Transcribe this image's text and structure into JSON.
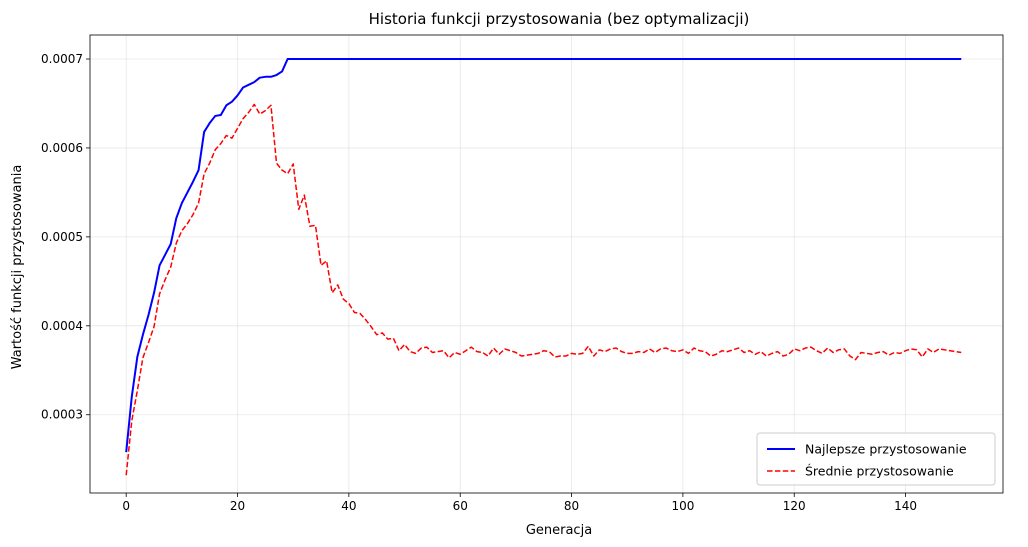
{
  "chart_data": {
    "type": "line",
    "title": "Historia funkcji przystosowania (bez optymalizacji)",
    "xlabel": "Generacja",
    "ylabel": "Wartość funkcji przystosowania",
    "xlim": [
      -6.5,
      157.5
    ],
    "ylim": [
      0.000212,
      0.000727
    ],
    "xticks": [
      0,
      20,
      40,
      60,
      80,
      100,
      120,
      140
    ],
    "yticks": [
      0.0003,
      0.0004,
      0.0005,
      0.0006,
      0.0007
    ],
    "ytick_labels": [
      "0.0003",
      "0.0004",
      "0.0005",
      "0.0006",
      "0.0007"
    ],
    "grid": true,
    "legend_position": "bottom-right",
    "series": [
      {
        "name": "Najlepsze przystosowanie",
        "color": "#0000ff",
        "style": "solid",
        "points": [
          [
            0,
            0.000258
          ],
          [
            1,
            0.00032
          ],
          [
            2,
            0.000365
          ],
          [
            3,
            0.00039
          ],
          [
            4,
            0.000412
          ],
          [
            5,
            0.000437
          ],
          [
            6,
            0.000468
          ],
          [
            7,
            0.00048
          ],
          [
            8,
            0.000492
          ],
          [
            9,
            0.000521
          ],
          [
            10,
            0.000538
          ],
          [
            11,
            0.00055
          ],
          [
            12,
            0.000562
          ],
          [
            13,
            0.000575
          ],
          [
            14,
            0.000618
          ],
          [
            15,
            0.000628
          ],
          [
            16,
            0.000636
          ],
          [
            17,
            0.000637
          ],
          [
            18,
            0.000648
          ],
          [
            19,
            0.000652
          ],
          [
            20,
            0.000659
          ],
          [
            21,
            0.000668
          ],
          [
            22,
            0.000671
          ],
          [
            23,
            0.000674
          ],
          [
            24,
            0.000679
          ],
          [
            25,
            0.00068
          ],
          [
            26,
            0.00068
          ],
          [
            27,
            0.000682
          ],
          [
            28,
            0.000686
          ],
          [
            29,
            0.0007
          ],
          [
            40,
            0.0007
          ],
          [
            60,
            0.0007
          ],
          [
            80,
            0.0007
          ],
          [
            100,
            0.0007
          ],
          [
            120,
            0.0007
          ],
          [
            140,
            0.0007
          ],
          [
            150,
            0.0007
          ]
        ]
      },
      {
        "name": "Średnie przystosowanie",
        "color": "#ff0000",
        "style": "dashed",
        "points": [
          [
            0,
            0.000232
          ],
          [
            1,
            0.000293
          ],
          [
            2,
            0.000327
          ],
          [
            3,
            0.000364
          ],
          [
            4,
            0.000381
          ],
          [
            5,
            0.000399
          ],
          [
            6,
            0.000436
          ],
          [
            7,
            0.000452
          ],
          [
            8,
            0.000466
          ],
          [
            9,
            0.000493
          ],
          [
            10,
            0.000507
          ],
          [
            11,
            0.000515
          ],
          [
            12,
            0.000525
          ],
          [
            13,
            0.000538
          ],
          [
            14,
            0.000571
          ],
          [
            15,
            0.000583
          ],
          [
            16,
            0.000598
          ],
          [
            17,
            0.000605
          ],
          [
            18,
            0.000614
          ],
          [
            19,
            0.000611
          ],
          [
            20,
            0.000622
          ],
          [
            21,
            0.000633
          ],
          [
            22,
            0.00064
          ],
          [
            23,
            0.000649
          ],
          [
            24,
            0.000638
          ],
          [
            25,
            0.000642
          ],
          [
            26,
            0.000648
          ],
          [
            27,
            0.000583
          ],
          [
            28,
            0.000575
          ],
          [
            29,
            0.000571
          ],
          [
            30,
            0.000582
          ],
          [
            31,
            0.000531
          ],
          [
            32,
            0.000547
          ],
          [
            33,
            0.000512
          ],
          [
            34,
            0.000513
          ],
          [
            35,
            0.000468
          ],
          [
            36,
            0.000473
          ],
          [
            37,
            0.000437
          ],
          [
            38,
            0.000446
          ],
          [
            39,
            0.00043
          ],
          [
            40,
            0.000425
          ],
          [
            41,
            0.000415
          ],
          [
            42,
            0.000414
          ],
          [
            43,
            0.000407
          ],
          [
            44,
            0.000399
          ],
          [
            45,
            0.00039
          ],
          [
            46,
            0.000392
          ],
          [
            47,
            0.000385
          ],
          [
            48,
            0.000386
          ],
          [
            49,
            0.000372
          ],
          [
            50,
            0.000379
          ],
          [
            51,
            0.000371
          ],
          [
            52,
            0.000369
          ],
          [
            53,
            0.000375
          ],
          [
            54,
            0.000376
          ],
          [
            55,
            0.00037
          ],
          [
            56,
            0.000371
          ],
          [
            57,
            0.000372
          ],
          [
            58,
            0.000364
          ],
          [
            59,
            0.00037
          ],
          [
            60,
            0.000368
          ],
          [
            61,
            0.000372
          ],
          [
            62,
            0.000376
          ],
          [
            63,
            0.000371
          ],
          [
            64,
            0.00037
          ],
          [
            65,
            0.000366
          ],
          [
            66,
            0.000375
          ],
          [
            67,
            0.000368
          ],
          [
            68,
            0.000374
          ],
          [
            69,
            0.000372
          ],
          [
            70,
            0.00037
          ],
          [
            71,
            0.000366
          ],
          [
            72,
            0.000367
          ],
          [
            73,
            0.000368
          ],
          [
            74,
            0.000369
          ],
          [
            75,
            0.000372
          ],
          [
            76,
            0.000371
          ],
          [
            77,
            0.000365
          ],
          [
            78,
            0.000366
          ],
          [
            79,
            0.000366
          ],
          [
            80,
            0.000369
          ],
          [
            81,
            0.000368
          ],
          [
            82,
            0.000369
          ],
          [
            83,
            0.000377
          ],
          [
            84,
            0.000366
          ],
          [
            85,
            0.000373
          ],
          [
            86,
            0.000371
          ],
          [
            87,
            0.000374
          ],
          [
            88,
            0.000375
          ],
          [
            89,
            0.000371
          ],
          [
            90,
            0.000369
          ],
          [
            91,
            0.000369
          ],
          [
            92,
            0.000371
          ],
          [
            93,
            0.00037
          ],
          [
            94,
            0.000374
          ],
          [
            95,
            0.00037
          ],
          [
            96,
            0.000374
          ],
          [
            97,
            0.000375
          ],
          [
            98,
            0.000372
          ],
          [
            99,
            0.000371
          ],
          [
            100,
            0.000373
          ],
          [
            101,
            0.000369
          ],
          [
            102,
            0.000375
          ],
          [
            103,
            0.000372
          ],
          [
            104,
            0.000371
          ],
          [
            105,
            0.000366
          ],
          [
            106,
            0.000368
          ],
          [
            107,
            0.000372
          ],
          [
            108,
            0.000371
          ],
          [
            109,
            0.000373
          ],
          [
            110,
            0.000375
          ],
          [
            111,
            0.00037
          ],
          [
            112,
            0.000372
          ],
          [
            113,
            0.000368
          ],
          [
            114,
            0.000371
          ],
          [
            115,
            0.000366
          ],
          [
            116,
            0.000369
          ],
          [
            117,
            0.000371
          ],
          [
            118,
            0.000366
          ],
          [
            119,
            0.000368
          ],
          [
            120,
            0.000374
          ],
          [
            121,
            0.000372
          ],
          [
            122,
            0.000375
          ],
          [
            123,
            0.000376
          ],
          [
            124,
            0.000372
          ],
          [
            125,
            0.000369
          ],
          [
            126,
            0.000375
          ],
          [
            127,
            0.00037
          ],
          [
            128,
            0.000373
          ],
          [
            129,
            0.000374
          ],
          [
            130,
            0.000366
          ],
          [
            131,
            0.000362
          ],
          [
            132,
            0.00037
          ],
          [
            133,
            0.000369
          ],
          [
            134,
            0.000368
          ],
          [
            135,
            0.00037
          ],
          [
            136,
            0.000371
          ],
          [
            137,
            0.000367
          ],
          [
            138,
            0.00037
          ],
          [
            139,
            0.000369
          ],
          [
            140,
            0.000372
          ],
          [
            141,
            0.000374
          ],
          [
            142,
            0.000373
          ],
          [
            143,
            0.000365
          ],
          [
            144,
            0.000374
          ],
          [
            145,
            0.00037
          ],
          [
            146,
            0.000374
          ],
          [
            147,
            0.000373
          ],
          [
            148,
            0.000372
          ],
          [
            149,
            0.000371
          ],
          [
            150,
            0.00037
          ]
        ]
      }
    ]
  }
}
